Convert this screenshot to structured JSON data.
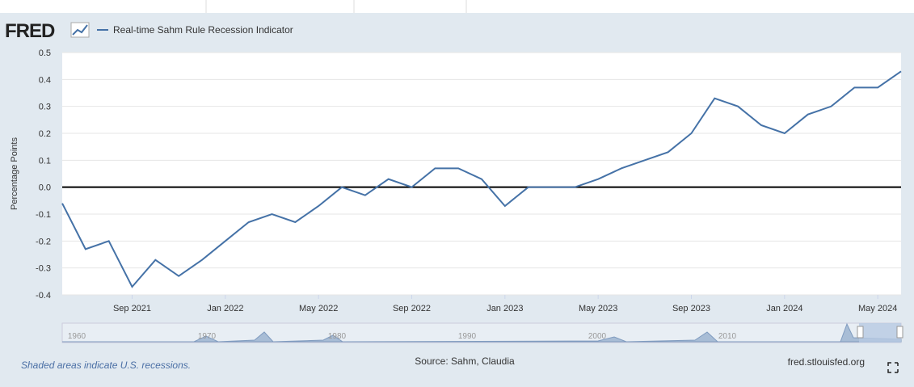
{
  "chart_data": {
    "type": "line",
    "logo": "FRED",
    "ylabel": "Percentage Points",
    "x": [
      "2021-06",
      "2021-07",
      "2021-08",
      "2021-09",
      "2021-10",
      "2021-11",
      "2021-12",
      "2022-01",
      "2022-02",
      "2022-03",
      "2022-04",
      "2022-05",
      "2022-06",
      "2022-07",
      "2022-08",
      "2022-09",
      "2022-10",
      "2022-11",
      "2022-12",
      "2023-01",
      "2023-02",
      "2023-03",
      "2023-04",
      "2023-05",
      "2023-06",
      "2023-07",
      "2023-08",
      "2023-09",
      "2023-10",
      "2023-11",
      "2023-12",
      "2024-01",
      "2024-02",
      "2024-03",
      "2024-04",
      "2024-05",
      "2024-06"
    ],
    "series": [
      {
        "name": "Real-time Sahm Rule Recession Indicator",
        "color": "#4572a7",
        "values": [
          -0.06,
          -0.23,
          -0.2,
          -0.37,
          -0.27,
          -0.33,
          -0.27,
          -0.2,
          -0.13,
          -0.1,
          -0.13,
          -0.07,
          0,
          -0.03,
          0.03,
          0,
          0.07,
          0.07,
          0.03,
          -0.07,
          0,
          0,
          0,
          0.03,
          0.07,
          0.1,
          0.13,
          0.2,
          0.33,
          0.3,
          0.23,
          0.2,
          0.27,
          0.3,
          0.37,
          0.37,
          0.43
        ]
      }
    ],
    "xlim": [
      "2021-06",
      "2024-06"
    ],
    "xticks": [
      {
        "value": "2021-09",
        "label": "Sep 2021"
      },
      {
        "value": "2022-01",
        "label": "Jan 2022"
      },
      {
        "value": "2022-05",
        "label": "May 2022"
      },
      {
        "value": "2022-09",
        "label": "Sep 2022"
      },
      {
        "value": "2023-01",
        "label": "Jan 2023"
      },
      {
        "value": "2023-05",
        "label": "May 2023"
      },
      {
        "value": "2023-09",
        "label": "Sep 2023"
      },
      {
        "value": "2024-01",
        "label": "Jan 2024"
      },
      {
        "value": "2024-05",
        "label": "May 2024"
      }
    ],
    "ylim": [
      -0.4,
      0.5
    ],
    "yticks": [
      0.5,
      0.4,
      0.3,
      0.2,
      0.1,
      {
        "value": 0,
        "label": "0.0"
      },
      -0.1,
      -0.2,
      -0.3,
      -0.4
    ],
    "grid": true,
    "navigator_labels": [
      "1960",
      "1970",
      "1980",
      "1990",
      "2000",
      "2010"
    ],
    "footnote": "Shaded areas indicate U.S. recessions.",
    "source": "Source: Sahm, Claudia",
    "site": "fred.stlouisfed.org"
  }
}
